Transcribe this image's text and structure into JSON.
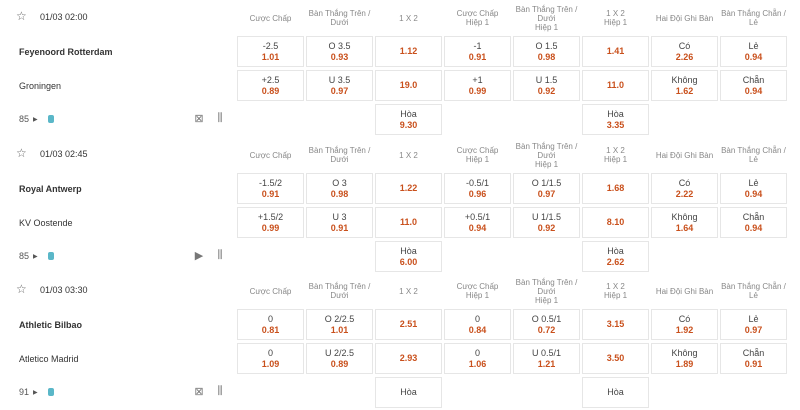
{
  "headers": [
    "Cược Chấp",
    "Bàn Thắng Trên / Dưới",
    "1 X 2",
    "Cược Chấp\nHiệp 1",
    "Bàn Thắng Trên / Dưới\nHiệp 1",
    "1 X 2\nHiệp 1",
    "Hai Đội Ghi Bàn",
    "Bàn Thắng Chẵn / Lẻ"
  ],
  "odds_color": "#c9501c",
  "matches": [
    {
      "time": "01/03 02:00",
      "home": "Feyenoord Rotterdam",
      "away": "Groningen",
      "minute": "85",
      "icons": [
        "field-icon",
        "stats-icon"
      ],
      "home_odds": [
        [
          "-2.5",
          "1.01"
        ],
        [
          "O 3.5",
          "0.93"
        ],
        [
          "",
          "1.12"
        ],
        [
          "-1",
          "0.91"
        ],
        [
          "O 1.5",
          "0.98"
        ],
        [
          "",
          "1.41"
        ],
        [
          "Có",
          "2.26"
        ],
        [
          "Lẻ",
          "0.94"
        ]
      ],
      "away_odds": [
        [
          "+2.5",
          "0.89"
        ],
        [
          "U 3.5",
          "0.97"
        ],
        [
          "",
          "19.0"
        ],
        [
          "+1",
          "0.99"
        ],
        [
          "U 1.5",
          "0.92"
        ],
        [
          "",
          "11.0"
        ],
        [
          "Không",
          "1.62"
        ],
        [
          "Chẵn",
          "0.94"
        ]
      ],
      "draw": [
        [
          "Hòa",
          "9.30"
        ],
        [
          "Hòa",
          "3.35"
        ]
      ]
    },
    {
      "time": "01/03 02:45",
      "home": "Royal Antwerp",
      "away": "KV Oostende",
      "minute": "85",
      "icons": [
        "play-icon",
        "stats-icon"
      ],
      "home_odds": [
        [
          "-1.5/2",
          "0.91"
        ],
        [
          "O 3",
          "0.98"
        ],
        [
          "",
          "1.22"
        ],
        [
          "-0.5/1",
          "0.96"
        ],
        [
          "O 1/1.5",
          "0.97"
        ],
        [
          "",
          "1.68"
        ],
        [
          "Có",
          "2.22"
        ],
        [
          "Lẻ",
          "0.94"
        ]
      ],
      "away_odds": [
        [
          "+1.5/2",
          "0.99"
        ],
        [
          "U 3",
          "0.91"
        ],
        [
          "",
          "11.0"
        ],
        [
          "+0.5/1",
          "0.94"
        ],
        [
          "U 1/1.5",
          "0.92"
        ],
        [
          "",
          "8.10"
        ],
        [
          "Không",
          "1.64"
        ],
        [
          "Chẵn",
          "0.94"
        ]
      ],
      "draw": [
        [
          "Hòa",
          "6.00"
        ],
        [
          "Hòa",
          "2.62"
        ]
      ]
    },
    {
      "time": "01/03 03:30",
      "home": "Athletic Bilbao",
      "away": "Atletico Madrid",
      "minute": "91",
      "icons": [
        "field-icon",
        "stats-icon"
      ],
      "home_odds": [
        [
          "0",
          "0.81"
        ],
        [
          "O 2/2.5",
          "1.01"
        ],
        [
          "",
          "2.51"
        ],
        [
          "0",
          "0.84"
        ],
        [
          "O 0.5/1",
          "0.72"
        ],
        [
          "",
          "3.15"
        ],
        [
          "Có",
          "1.92"
        ],
        [
          "Lẻ",
          "0.97"
        ]
      ],
      "away_odds": [
        [
          "0",
          "1.09"
        ],
        [
          "U 2/2.5",
          "0.89"
        ],
        [
          "",
          "2.93"
        ],
        [
          "0",
          "1.06"
        ],
        [
          "U 0.5/1",
          "1.21"
        ],
        [
          "",
          "3.50"
        ],
        [
          "Không",
          "1.89"
        ],
        [
          "Chẵn",
          "0.91"
        ]
      ],
      "draw": [
        [
          "Hòa",
          ""
        ],
        [
          "Hòa",
          ""
        ]
      ]
    }
  ]
}
